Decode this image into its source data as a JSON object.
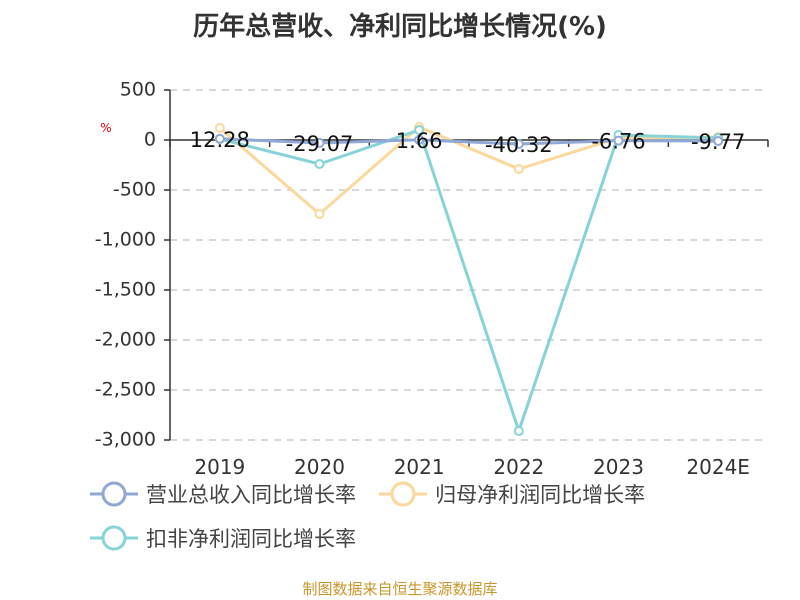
{
  "title": "历年总营收、净利同比增长情况(%)",
  "unit_label": "%",
  "source": "制图数据来自恒生聚源数据库",
  "colors": {
    "revenue": "#8fa8d6",
    "net_profit": "#fbd89b",
    "deducted_profit": "#86d3d8",
    "grid": "#cccccc",
    "axis": "#333333"
  },
  "chart_data": {
    "type": "line",
    "title": "历年总营收、净利同比增长情况(%)",
    "xlabel": "",
    "ylabel": "%",
    "categories": [
      "2019",
      "2020",
      "2021",
      "2022",
      "2023",
      "2024E"
    ],
    "ylim": [
      -3000,
      500
    ],
    "yticks": [
      500,
      0,
      -500,
      -1000,
      -1500,
      -2000,
      -2500,
      -3000
    ],
    "ytick_labels": [
      "500",
      "0",
      "-500",
      "-1,000",
      "-1,500",
      "-2,000",
      "-2,500",
      "-3,000"
    ],
    "grid": true,
    "legend_position": "bottom",
    "series": [
      {
        "name": "营业总收入同比增长率",
        "values": [
          12.28,
          -29.07,
          1.66,
          -40.32,
          -6.76,
          -9.77
        ],
        "color": "#8fa8d6",
        "labels": [
          "12.28",
          "-29.07",
          "1.66",
          "-40.32",
          "-6.76",
          "-9.77"
        ]
      },
      {
        "name": "归母净利润同比增长率",
        "values": [
          120,
          -740,
          130,
          -290,
          20,
          30
        ],
        "color": "#fbd89b"
      },
      {
        "name": "扣非净利润同比增长率",
        "values": [
          10,
          -240,
          100,
          -2910,
          50,
          20
        ],
        "color": "#86d3d8"
      }
    ]
  }
}
